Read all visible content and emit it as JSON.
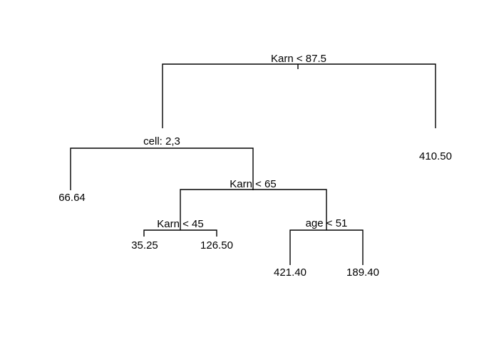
{
  "tree": {
    "splits": {
      "root": "Karn < 87.5",
      "cell": "cell: 2,3",
      "karn65": "Karn < 65",
      "karn45": "Karn < 45",
      "age51": "age < 51"
    },
    "leaves": {
      "leaf_66": "66.64",
      "leaf_35": "35.25",
      "leaf_126": "126.50",
      "leaf_421": "421.40",
      "leaf_189": "189.40",
      "leaf_410": "410.50"
    },
    "colors": {
      "line": "#000000",
      "text": "#000000",
      "background": "#ffffff"
    }
  }
}
